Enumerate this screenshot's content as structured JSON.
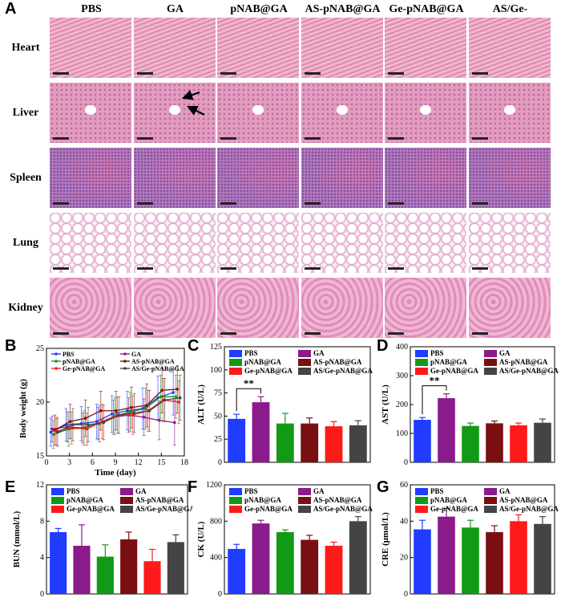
{
  "figure": {
    "panel_labels": [
      "A",
      "B",
      "C",
      "D",
      "E",
      "F",
      "G"
    ],
    "columns": [
      "PBS",
      "GA",
      "pNAB@GA",
      "AS-pNAB@GA",
      "Ge-pNAB@GA",
      "AS/Ge-pNAB@GA"
    ],
    "rows": [
      "Heart",
      "Liver",
      "Spleen",
      "Lung",
      "Kidney"
    ],
    "colors": {
      "PBS": "#1f3cff",
      "GA": "#8b1a8b",
      "pNAB@GA": "#129a16",
      "AS-pNAB@GA": "#7a0f12",
      "Ge-pNAB@GA": "#ff1a1a",
      "AS/Ge-pNAB@GA": "#444444"
    },
    "tissue_colors": {
      "Heart": "#e9a7c2",
      "Liver": "#e39cbd",
      "Spleen": "#b478b8",
      "Lung": "#f3e4ee",
      "Kidney": "#e8a6c8"
    }
  },
  "chart_data": [
    {
      "id": "B",
      "type": "line",
      "xlabel": "Time (day)",
      "ylabel": "Body weight (g)",
      "xlim": [
        0,
        18
      ],
      "ylim": [
        15,
        25
      ],
      "xticks": [
        0,
        3,
        6,
        9,
        12,
        15,
        18
      ],
      "yticks": [
        15,
        20,
        25
      ],
      "x": [
        1,
        3,
        5,
        7,
        9,
        11,
        13,
        15,
        17
      ],
      "series": [
        {
          "name": "PBS",
          "values": [
            17.2,
            17.9,
            18.0,
            18.2,
            18.9,
            19.2,
            19.4,
            20.4,
            20.9
          ],
          "error": [
            1.3,
            1.5,
            1.6,
            1.6,
            1.7,
            1.8,
            1.9,
            2.0,
            2.1
          ]
        },
        {
          "name": "GA",
          "values": [
            17.5,
            17.7,
            17.6,
            18.0,
            18.6,
            18.8,
            18.6,
            18.3,
            18.1
          ],
          "error": [
            1.2,
            1.4,
            1.4,
            1.5,
            1.6,
            1.6,
            1.7,
            1.8,
            2.1
          ]
        },
        {
          "name": "pNAB@GA",
          "values": [
            17.0,
            17.5,
            17.6,
            18.0,
            18.7,
            19.1,
            19.4,
            20.5,
            20.5
          ],
          "error": [
            1.3,
            1.6,
            1.6,
            1.7,
            1.7,
            1.8,
            1.9,
            2.0,
            2.0
          ]
        },
        {
          "name": "AS-pNAB@GA",
          "values": [
            17.4,
            18.2,
            18.5,
            19.2,
            19.2,
            19.5,
            19.7,
            21.1,
            21.2
          ],
          "error": [
            1.4,
            1.6,
            1.7,
            1.8,
            1.8,
            1.9,
            2.0,
            2.1,
            2.2
          ]
        },
        {
          "name": "Ge-pNAB@GA",
          "values": [
            17.3,
            17.6,
            17.5,
            18.2,
            18.8,
            18.8,
            19.2,
            20.2,
            20.0
          ],
          "error": [
            1.3,
            1.5,
            1.5,
            1.6,
            1.7,
            1.8,
            1.9,
            2.0,
            2.0
          ]
        },
        {
          "name": "AS/Ge-pNAB@GA",
          "values": [
            17.2,
            17.9,
            17.9,
            18.1,
            18.8,
            19.0,
            19.2,
            20.2,
            20.4
          ],
          "error": [
            1.3,
            1.5,
            1.6,
            1.6,
            1.7,
            1.8,
            1.9,
            2.0,
            2.1
          ]
        }
      ]
    },
    {
      "id": "C",
      "type": "bar",
      "ylabel": "ALT (U/L)",
      "ylim": [
        0,
        125
      ],
      "yticks": [
        0,
        25,
        50,
        75,
        100,
        125
      ],
      "categories": [
        "PBS",
        "GA",
        "pNAB@GA",
        "AS-pNAB@GA",
        "Ge-pNAB@GA",
        "AS/Ge-pNAB@GA"
      ],
      "values": [
        47,
        65,
        42,
        42,
        39,
        40
      ],
      "error": [
        5,
        6,
        11,
        6,
        5,
        5
      ],
      "significance": {
        "between": [
          0,
          1
        ],
        "label": "**"
      }
    },
    {
      "id": "D",
      "type": "bar",
      "ylabel": "AST (U/L)",
      "ylim": [
        0,
        400
      ],
      "yticks": [
        0,
        100,
        200,
        300,
        400
      ],
      "categories": [
        "PBS",
        "GA",
        "pNAB@GA",
        "AS-pNAB@GA",
        "Ge-pNAB@GA",
        "AS/Ge-pNAB@GA"
      ],
      "values": [
        147,
        222,
        126,
        135,
        128,
        137
      ],
      "error": [
        8,
        15,
        10,
        8,
        8,
        13
      ],
      "significance": {
        "between": [
          0,
          1
        ],
        "label": "**"
      }
    },
    {
      "id": "E",
      "type": "bar",
      "ylabel": "BUN (mmol/L)",
      "ylim": [
        0,
        12
      ],
      "yticks": [
        0,
        4,
        8,
        12
      ],
      "categories": [
        "PBS",
        "GA",
        "pNAB@GA",
        "AS-pNAB@GA",
        "Ge-pNAB@GA",
        "AS/Ge-pNAB@GA"
      ],
      "values": [
        6.8,
        5.3,
        4.1,
        6.0,
        3.6,
        5.7
      ],
      "error": [
        0.4,
        2.3,
        1.3,
        0.8,
        1.3,
        0.8
      ]
    },
    {
      "id": "F",
      "type": "bar",
      "ylabel": "CK (U/L)",
      "ylim": [
        0,
        1200
      ],
      "yticks": [
        0,
        400,
        800,
        1200
      ],
      "categories": [
        "PBS",
        "GA",
        "pNAB@GA",
        "AS-pNAB@GA",
        "Ge-pNAB@GA",
        "AS/Ge-pNAB@GA"
      ],
      "values": [
        495,
        775,
        680,
        595,
        530,
        800
      ],
      "error": [
        50,
        35,
        25,
        50,
        40,
        50
      ]
    },
    {
      "id": "G",
      "type": "bar",
      "ylabel": "CRE (μmol/L)",
      "ylim": [
        0,
        60
      ],
      "yticks": [
        0,
        20,
        40,
        60
      ],
      "categories": [
        "PBS",
        "GA",
        "pNAB@GA",
        "AS-pNAB@GA",
        "Ge-pNAB@GA",
        "AS/Ge-pNAB@GA"
      ],
      "values": [
        35.5,
        42.5,
        36.5,
        34.0,
        40.0,
        38.5
      ],
      "error": [
        5,
        4.5,
        4,
        3.5,
        3.5,
        4
      ]
    }
  ]
}
